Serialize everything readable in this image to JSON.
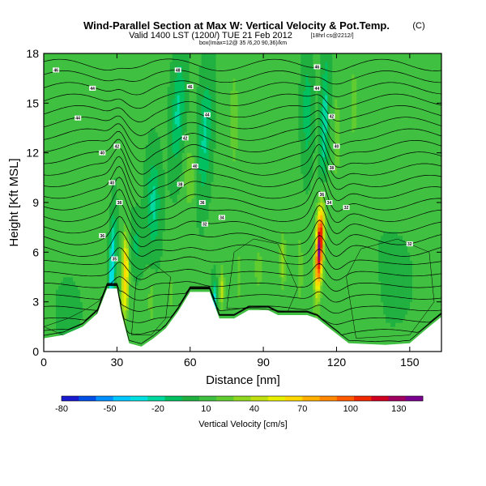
{
  "chart_data": {
    "type": "heatmap",
    "title": "Wind-Parallel Section at Max W: Vertical Velocity & Pot.Temp.",
    "title_mark": "(C)",
    "subtitle": "Valid 1400 LST (1200/) TUE 21 Feb 2012",
    "subtitle_note": "[18hrl cs@2212/]",
    "info_line": "box(Imax=12@ 35 /6,20 90,36)/km",
    "xlabel": "Distance [nm]",
    "ylabel": "Height [Kft MSL]",
    "xlim": [
      0,
      163
    ],
    "ylim": [
      0,
      18
    ],
    "xticks": [
      0,
      30,
      60,
      90,
      120,
      150
    ],
    "yticks": [
      0,
      3,
      6,
      9,
      12,
      15,
      18
    ],
    "colorbar": {
      "title": "Vertical Velocity [cm/s]",
      "labels": [
        "-80",
        "-50",
        "-20",
        "10",
        "40",
        "70",
        "100",
        "130"
      ],
      "min": -80,
      "max": 140,
      "colors": [
        "#1a1ad0",
        "#0050e8",
        "#0090ff",
        "#00c8ff",
        "#00e0e0",
        "#00d8a0",
        "#00c060",
        "#20b040",
        "#40c040",
        "#60cc30",
        "#90d820",
        "#c0e010",
        "#e8f000",
        "#ffd800",
        "#ffb000",
        "#ff8800",
        "#ff5a00",
        "#f02800",
        "#d00020",
        "#a00060",
        "#7a0090"
      ]
    },
    "terrain": [
      [
        0,
        0.8
      ],
      [
        8,
        1.0
      ],
      [
        16,
        1.5
      ],
      [
        22,
        2.3
      ],
      [
        26,
        3.8
      ],
      [
        30,
        3.8
      ],
      [
        32,
        2.2
      ],
      [
        35,
        0.5
      ],
      [
        40,
        0.3
      ],
      [
        45,
        0.8
      ],
      [
        50,
        1.4
      ],
      [
        55,
        2.4
      ],
      [
        60,
        3.6
      ],
      [
        68,
        3.6
      ],
      [
        72,
        2.0
      ],
      [
        78,
        2.0
      ],
      [
        84,
        2.5
      ],
      [
        92,
        2.5
      ],
      [
        96,
        2.2
      ],
      [
        108,
        2.2
      ],
      [
        112,
        2.0
      ],
      [
        118,
        1.3
      ],
      [
        125,
        0.5
      ],
      [
        140,
        0.4
      ],
      [
        150,
        0.5
      ],
      [
        158,
        1.5
      ],
      [
        163,
        2.1
      ]
    ],
    "theta_contours": [
      0.5,
      1.2,
      1.9,
      2.6,
      3.3,
      4.0,
      4.7,
      5.4,
      6.1,
      6.8,
      7.5,
      8.2,
      8.9,
      9.6,
      10.3,
      11.0,
      11.7,
      12.4,
      13.1,
      13.8,
      14.5,
      15.2,
      15.9,
      16.6,
      17.3
    ],
    "theta_labels": [
      {
        "x": 5,
        "y": 17.0,
        "text": "46"
      },
      {
        "x": 20,
        "y": 15.9,
        "text": "44"
      },
      {
        "x": 14,
        "y": 14.1,
        "text": "44"
      },
      {
        "x": 30,
        "y": 12.4,
        "text": "42"
      },
      {
        "x": 24,
        "y": 12.0,
        "text": "40"
      },
      {
        "x": 28,
        "y": 10.2,
        "text": "40"
      },
      {
        "x": 31,
        "y": 9.0,
        "text": "38"
      },
      {
        "x": 24,
        "y": 7.0,
        "text": "36"
      },
      {
        "x": 29,
        "y": 5.6,
        "text": "35"
      },
      {
        "x": 55,
        "y": 17.0,
        "text": "48"
      },
      {
        "x": 60,
        "y": 16.0,
        "text": "46"
      },
      {
        "x": 67,
        "y": 14.3,
        "text": "44"
      },
      {
        "x": 58,
        "y": 12.9,
        "text": "42"
      },
      {
        "x": 62,
        "y": 11.2,
        "text": "40"
      },
      {
        "x": 56,
        "y": 10.1,
        "text": "38"
      },
      {
        "x": 65,
        "y": 9.0,
        "text": "36"
      },
      {
        "x": 73,
        "y": 8.1,
        "text": "34"
      },
      {
        "x": 66,
        "y": 7.7,
        "text": "32"
      },
      {
        "x": 112,
        "y": 17.2,
        "text": "46"
      },
      {
        "x": 112,
        "y": 15.9,
        "text": "44"
      },
      {
        "x": 118,
        "y": 14.2,
        "text": "42"
      },
      {
        "x": 120,
        "y": 12.4,
        "text": "40"
      },
      {
        "x": 118,
        "y": 11.1,
        "text": "38"
      },
      {
        "x": 114,
        "y": 9.5,
        "text": "36"
      },
      {
        "x": 117,
        "y": 9.0,
        "text": "34"
      },
      {
        "x": 124,
        "y": 8.7,
        "text": "32"
      },
      {
        "x": 150,
        "y": 6.5,
        "text": "32"
      }
    ],
    "velocity_features": [
      {
        "cx": 113,
        "cy": 6.3,
        "sx": 1.3,
        "sy": 2.4,
        "amp": 110,
        "tilt": 0.3
      },
      {
        "cx": 113,
        "cy": 6.3,
        "sx": 2.8,
        "sy": 3.6,
        "amp": 20,
        "tilt": 0.3
      },
      {
        "cx": 33.5,
        "cy": 5.2,
        "sx": 1.4,
        "sy": 1.9,
        "amp": 60,
        "tilt": 0
      },
      {
        "cx": 33,
        "cy": 3.0,
        "sx": 1.5,
        "sy": 1.2,
        "amp": 30,
        "tilt": 0
      },
      {
        "cx": 28,
        "cy": 5.0,
        "sx": 1.2,
        "sy": 3.0,
        "amp": -45,
        "tilt": 0.2
      },
      {
        "cx": 70,
        "cy": 3.0,
        "sx": 0.9,
        "sy": 1.2,
        "amp": -40,
        "tilt": 0
      },
      {
        "cx": 73,
        "cy": 3.8,
        "sx": 1.0,
        "sy": 1.2,
        "amp": 35,
        "tilt": 0
      },
      {
        "cx": 115,
        "cy": 13.5,
        "sx": 1.6,
        "sy": 4.0,
        "amp": -30,
        "tilt": 0.2
      },
      {
        "cx": 127,
        "cy": 15.0,
        "sx": 1.4,
        "sy": 2.0,
        "amp": 20,
        "tilt": 0
      },
      {
        "cx": 120,
        "cy": 13.0,
        "sx": 1.4,
        "sy": 2.5,
        "amp": 20,
        "tilt": 0
      },
      {
        "cx": 45,
        "cy": 9.0,
        "sx": 2.6,
        "sy": 2.6,
        "amp": -25,
        "tilt": 0
      },
      {
        "cx": 38,
        "cy": 6.5,
        "sx": 2.5,
        "sy": 1.5,
        "amp": -15,
        "tilt": 0
      },
      {
        "cx": 55,
        "cy": 14.5,
        "sx": 2.5,
        "sy": 3.2,
        "amp": -25,
        "tilt": 0.3
      },
      {
        "cx": 66,
        "cy": 13.0,
        "sx": 2.5,
        "sy": 3.5,
        "amp": -25,
        "tilt": 0.3
      },
      {
        "cx": 78,
        "cy": 14.0,
        "sx": 2.0,
        "sy": 3.5,
        "amp": 15,
        "tilt": 0
      },
      {
        "cx": 60,
        "cy": 10.5,
        "sx": 2.5,
        "sy": 2.0,
        "amp": 18,
        "tilt": 0
      },
      {
        "cx": 108,
        "cy": 14.5,
        "sx": 2.0,
        "sy": 3.0,
        "amp": -20,
        "tilt": 0
      },
      {
        "cx": 88,
        "cy": 5.0,
        "sx": 2.5,
        "sy": 2.0,
        "amp": 12,
        "tilt": 0
      },
      {
        "cx": 98,
        "cy": 5.5,
        "sx": 1.2,
        "sy": 1.6,
        "amp": 30,
        "tilt": 0
      },
      {
        "cx": 105,
        "cy": 5.0,
        "sx": 1.5,
        "sy": 2.5,
        "amp": 15,
        "tilt": 0
      },
      {
        "cx": 80,
        "cy": 4.5,
        "sx": 1.5,
        "sy": 2.0,
        "amp": 14,
        "tilt": 0
      },
      {
        "cx": 143,
        "cy": 4.5,
        "sx": 6.0,
        "sy": 2.0,
        "amp": -10,
        "tilt": 0
      },
      {
        "cx": 135,
        "cy": 3.0,
        "sx": 3.0,
        "sy": 2.0,
        "amp": 10,
        "tilt": 0
      },
      {
        "cx": 10,
        "cy": 2.5,
        "sx": 4.0,
        "sy": 1.5,
        "amp": -8,
        "tilt": 0
      },
      {
        "cx": 152,
        "cy": 12.0,
        "sx": 6.0,
        "sy": 4.0,
        "amp": 5,
        "tilt": 0
      },
      {
        "cx": 15,
        "cy": 13.0,
        "sx": 8.0,
        "sy": 4.0,
        "amp": 8,
        "tilt": 0
      },
      {
        "cx": 52,
        "cy": 3.5,
        "sx": 1.5,
        "sy": 1.5,
        "amp": 12,
        "tilt": 0
      },
      {
        "cx": 44,
        "cy": 3.0,
        "sx": 1.3,
        "sy": 1.3,
        "amp": 16,
        "tilt": 0
      }
    ],
    "velocity_background": 5
  }
}
